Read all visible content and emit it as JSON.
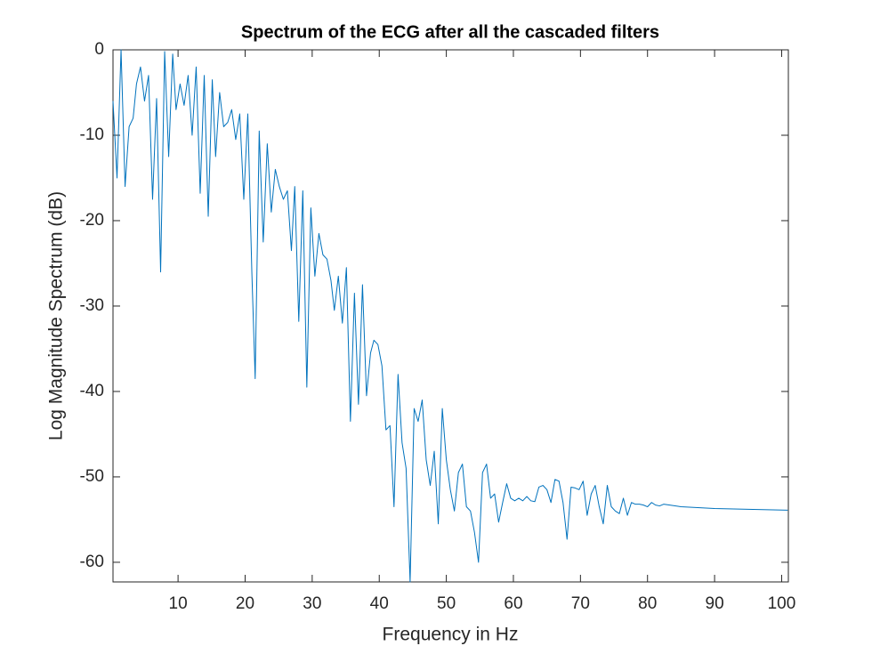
{
  "chart_data": {
    "type": "line",
    "title": "Spectrum of the ECG after all the cascaded filters",
    "x_label": "Frequency in Hz",
    "y_label": "Log Magnitude Spectrum (dB)",
    "color": "#0072bd",
    "x": [
      0.3,
      0.9,
      1.5,
      2.1,
      2.7,
      3.3,
      3.8,
      4.4,
      5.0,
      5.6,
      6.2,
      6.8,
      7.4,
      8.0,
      8.6,
      9.2,
      9.7,
      10.3,
      10.9,
      11.5,
      12.1,
      12.7,
      13.3,
      13.9,
      14.5,
      15.1,
      15.6,
      16.2,
      16.8,
      17.4,
      18.0,
      18.6,
      19.2,
      19.8,
      20.4,
      21.0,
      21.5,
      22.1,
      22.7,
      23.3,
      23.9,
      24.5,
      25.1,
      25.7,
      26.3,
      26.9,
      27.4,
      28.0,
      28.6,
      29.2,
      29.8,
      30.4,
      31.0,
      31.6,
      32.2,
      32.8,
      33.3,
      33.9,
      34.5,
      35.1,
      35.7,
      36.3,
      36.9,
      37.5,
      38.1,
      38.7,
      39.2,
      39.8,
      40.4,
      41.0,
      41.6,
      42.2,
      42.8,
      43.4,
      44.0,
      44.6,
      45.2,
      45.8,
      46.4,
      47.0,
      47.6,
      48.2,
      48.8,
      49.4,
      50.0,
      50.6,
      51.2,
      51.8,
      52.4,
      53.0,
      53.6,
      54.2,
      54.8,
      55.4,
      56.0,
      56.6,
      57.2,
      57.8,
      58.4,
      59.0,
      59.6,
      60.2,
      60.8,
      61.4,
      62.0,
      62.6,
      63.2,
      63.8,
      64.4,
      65.0,
      65.6,
      66.2,
      66.8,
      67.4,
      68.0,
      68.6,
      69.2,
      69.8,
      70.4,
      71.0,
      71.6,
      72.2,
      72.8,
      73.4,
      74.0,
      74.6,
      75.2,
      75.8,
      76.4,
      77.0,
      77.6,
      78.2,
      78.8,
      79.4,
      80.0,
      80.6,
      81.2,
      81.8,
      82.4,
      85,
      90,
      95,
      100.9
    ],
    "values": [
      -6,
      -15,
      0,
      -16,
      -9,
      -8,
      -4,
      -2,
      -6,
      -3,
      -17.5,
      -5.7,
      -26,
      -0.2,
      -12.5,
      -0.5,
      -7,
      -4,
      -6.5,
      -3,
      -10,
      -2,
      -16.8,
      -3,
      -19.5,
      -3.5,
      -12.5,
      -5,
      -9,
      -8.5,
      -7,
      -10.5,
      -7.5,
      -17.5,
      -7.5,
      -26,
      -38.5,
      -9.5,
      -22.5,
      -11,
      -19,
      -14,
      -16,
      -17.5,
      -16.5,
      -23.5,
      -16,
      -31.8,
      -16.5,
      -39.5,
      -18.5,
      -26.5,
      -21.5,
      -24,
      -24.5,
      -27,
      -30.5,
      -26.5,
      -32,
      -25.5,
      -43.5,
      -28.5,
      -41.5,
      -27.5,
      -40.5,
      -35.5,
      -34,
      -34.5,
      -37,
      -44.5,
      -44,
      -53.5,
      -38,
      -46,
      -49,
      -62.3,
      -42,
      -43.5,
      -41,
      -48,
      -51,
      -47,
      -55.5,
      -42,
      -48,
      -51.5,
      -54,
      -49.5,
      -48.5,
      -53.5,
      -54,
      -56.5,
      -60,
      -49.5,
      -48.5,
      -52.5,
      -52,
      -55.3,
      -53,
      -50.8,
      -52.5,
      -52.8,
      -52.5,
      -52.8,
      -52.3,
      -52.8,
      -52.9,
      -51.2,
      -51,
      -51.5,
      -53,
      -50.3,
      -50.5,
      -53,
      -57.3,
      -51.2,
      -51.3,
      -51.5,
      -50.5,
      -54.5,
      -52,
      -51,
      -53.5,
      -55.5,
      -51,
      -53.5,
      -54,
      -54.3,
      -52.5,
      -54.5,
      -53,
      -53.2,
      -53.2,
      -53.3,
      -53.5,
      -53,
      -53.3,
      -53.4,
      -53.2,
      -53.5,
      -53.7,
      -53.8,
      -53.9
    ],
    "xlim": [
      0.3,
      101
    ],
    "ylim": [
      -62.3,
      0
    ],
    "xticks": [
      10,
      20,
      30,
      40,
      50,
      60,
      70,
      80,
      90,
      100
    ],
    "yticks": [
      -60,
      -50,
      -40,
      -30,
      -20,
      -10,
      0
    ]
  }
}
